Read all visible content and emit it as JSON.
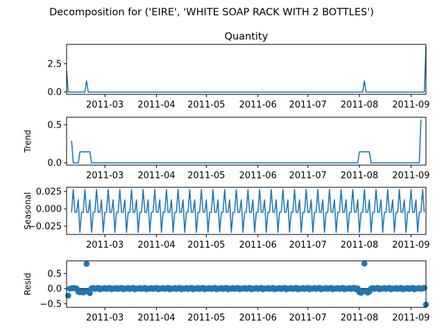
{
  "chart_data": {
    "type": "line",
    "suptitle": "Decomposition for ('EIRE', 'WHITE SOAP RACK WITH 2 BOTTLES')",
    "x_start": "2011-02-06",
    "x_end": "2011-09-10",
    "x_ticks": [
      "2011-03",
      "2011-04",
      "2011-05",
      "2011-06",
      "2011-07",
      "2011-08",
      "2011-09"
    ],
    "series_color": "#1f77b4",
    "panels": [
      {
        "key": "observed",
        "title": "Quantity",
        "ylabel": "",
        "ylim": [
          -0.2,
          4.2
        ],
        "yticks": [
          "0.0",
          "2.5"
        ],
        "ytick_values": [
          0,
          2.5
        ],
        "kind": "line",
        "points": [
          [
            "2011-02-06",
            1.9
          ],
          [
            "2011-02-07",
            0
          ],
          [
            "2011-02-17",
            0
          ],
          [
            "2011-02-18",
            1
          ],
          [
            "2011-02-19",
            0
          ],
          [
            "2011-08-03",
            0
          ],
          [
            "2011-08-04",
            1
          ],
          [
            "2011-08-05",
            0
          ],
          [
            "2011-09-09",
            0
          ],
          [
            "2011-09-10",
            4
          ]
        ]
      },
      {
        "key": "trend",
        "title": "",
        "ylabel": "Trend",
        "ylim": [
          -0.03,
          0.6
        ],
        "yticks": [
          "0.0",
          "0.5"
        ],
        "ytick_values": [
          0,
          0.5
        ],
        "kind": "line",
        "points": [
          [
            "2011-02-09",
            0.29
          ],
          [
            "2011-02-10",
            0
          ],
          [
            "2011-02-13",
            0
          ],
          [
            "2011-02-14",
            0.145
          ],
          [
            "2011-02-20",
            0.145
          ],
          [
            "2011-02-21",
            0
          ],
          [
            "2011-07-31",
            0
          ],
          [
            "2011-08-01",
            0.145
          ],
          [
            "2011-08-07",
            0.145
          ],
          [
            "2011-08-08",
            0
          ],
          [
            "2011-09-06",
            0
          ],
          [
            "2011-09-07",
            0.57
          ]
        ]
      },
      {
        "key": "seasonal",
        "title": "",
        "ylabel": "Seasonal",
        "ylim": [
          -0.037,
          0.031
        ],
        "yticks": [
          "−0.025",
          "0.000",
          "0.025"
        ],
        "ytick_values": [
          -0.025,
          0,
          0.025
        ],
        "kind": "periodic",
        "period_days": 7,
        "pattern": [
          -0.005,
          0.028,
          -0.005,
          -0.005,
          0.013,
          -0.034,
          -0.005
        ]
      },
      {
        "key": "resid",
        "title": "",
        "ylabel": "Resid",
        "ylim": [
          -0.62,
          0.92
        ],
        "yticks": [
          "−0.5",
          "0.0",
          "0.5"
        ],
        "ytick_values": [
          -0.5,
          0,
          0.5
        ],
        "kind": "scatter",
        "points": [
          [
            "2011-02-07",
            -0.23
          ],
          [
            "2011-02-08",
            0.0
          ],
          [
            "2011-02-09",
            0.01
          ],
          [
            "2011-02-10",
            0.02
          ],
          [
            "2011-02-11",
            0.01
          ],
          [
            "2011-02-12",
            0.0
          ],
          [
            "2011-02-13",
            -0.1
          ],
          [
            "2011-02-14",
            -0.12
          ],
          [
            "2011-02-15",
            -0.1
          ],
          [
            "2011-02-16",
            -0.13
          ],
          [
            "2011-02-17",
            -0.1
          ],
          [
            "2011-02-18",
            0.82
          ],
          [
            "2011-02-19",
            -0.1
          ],
          [
            "2011-02-20",
            -0.15
          ],
          [
            "2011-02-21",
            0.01
          ],
          [
            "2011-08-01",
            -0.12
          ],
          [
            "2011-08-02",
            -0.14
          ],
          [
            "2011-08-03",
            -0.1
          ],
          [
            "2011-08-04",
            0.83
          ],
          [
            "2011-08-05",
            -0.1
          ],
          [
            "2011-08-06",
            -0.13
          ],
          [
            "2011-08-07",
            -0.1
          ],
          [
            "2011-08-08",
            0.0
          ],
          [
            "2011-09-10",
            -0.53
          ]
        ],
        "baseline_jitter": [
          0.0,
          0.02,
          -0.01,
          0.01,
          0.025,
          -0.02,
          0.005
        ]
      }
    ]
  }
}
